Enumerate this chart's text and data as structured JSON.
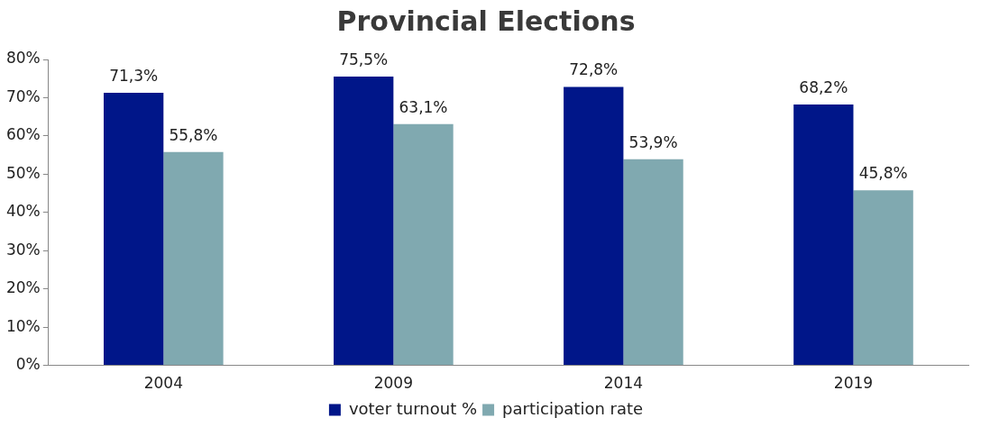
{
  "chart_data": {
    "type": "bar",
    "title": "Provincial Elections",
    "categories": [
      "2004",
      "2009",
      "2014",
      "2019"
    ],
    "series": [
      {
        "name": "voter turnout %",
        "color": "#001689",
        "values": [
          71.3,
          75.5,
          72.8,
          68.2
        ],
        "value_labels": [
          "71,3%",
          "75,5%",
          "72,8%",
          "68,2%"
        ]
      },
      {
        "name": "participation rate",
        "color": "#80a9b0",
        "values": [
          55.8,
          63.1,
          53.9,
          45.8
        ],
        "value_labels": [
          "55,8%",
          "63,1%",
          "53,9%",
          "45,8%"
        ]
      }
    ],
    "ylim": [
      0,
      80
    ],
    "yticks": [
      {
        "value": 0,
        "label": "0%"
      },
      {
        "value": 10,
        "label": "10%"
      },
      {
        "value": 20,
        "label": "20%"
      },
      {
        "value": 30,
        "label": "30%"
      },
      {
        "value": 40,
        "label": "40%"
      },
      {
        "value": 50,
        "label": "50%"
      },
      {
        "value": 60,
        "label": "60%"
      },
      {
        "value": 70,
        "label": "70%"
      },
      {
        "value": 80,
        "label": "80%"
      }
    ],
    "grid": false,
    "legend": "bottom"
  }
}
